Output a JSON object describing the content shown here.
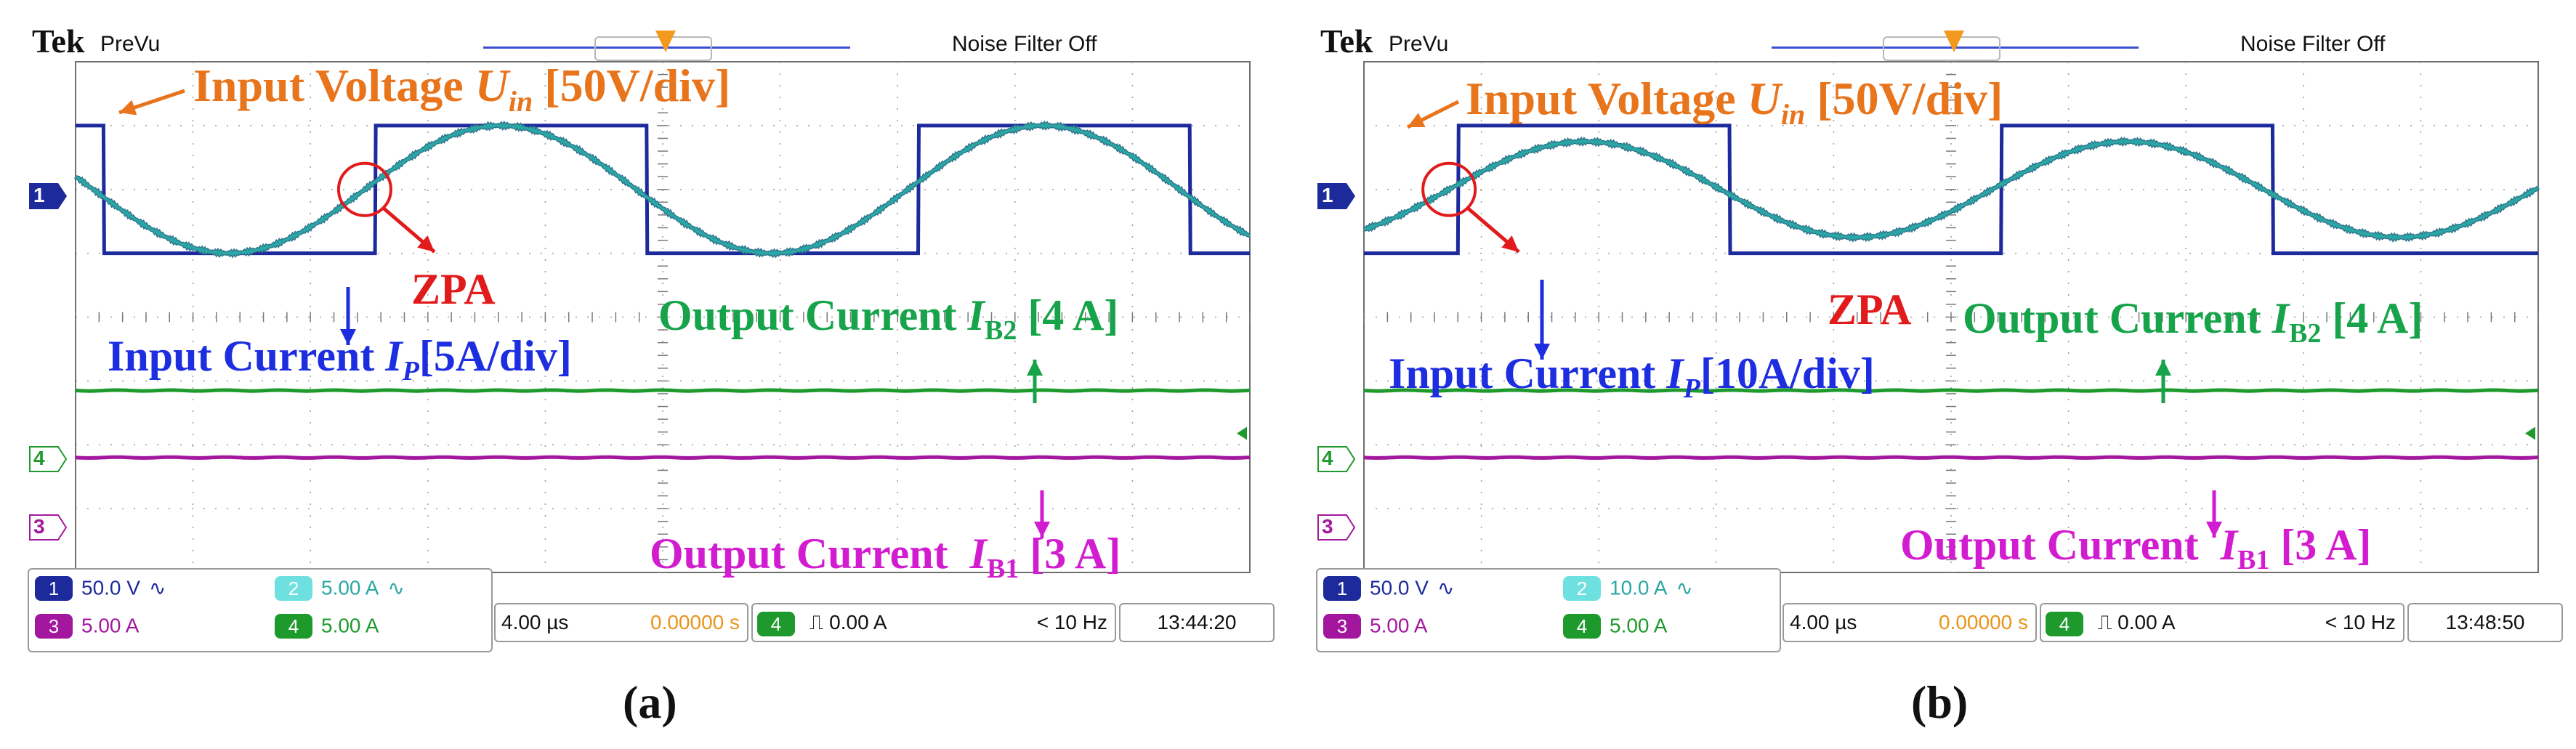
{
  "panels": [
    {
      "id": "a",
      "header": {
        "brand": "Tek",
        "mode": "PreVu",
        "noise_filter": "Noise Filter Off"
      },
      "annotations": {
        "input_voltage": {
          "prefix": "Input Voltage ",
          "var": "U",
          "sub": "in",
          "suffix": " [50V/div]"
        },
        "zpa": "ZPA",
        "input_current": {
          "prefix": "Input Current ",
          "var": "I",
          "sub": "P",
          "suffix": "[5A/div]"
        },
        "output_b2": {
          "prefix": "Output Current ",
          "var": "I",
          "sub": "B2",
          "suffix": " [4 A]"
        },
        "output_b1": {
          "prefix": "Output Current  ",
          "var": "I",
          "sub": "B1",
          "suffix": " [3 A]"
        }
      },
      "channels": {
        "ch1": {
          "label": "1",
          "scale": "50.0 V",
          "symbol": "∿"
        },
        "ch2": {
          "label": "2",
          "scale": "5.00 A",
          "symbol": "∿"
        },
        "ch3": {
          "label": "3",
          "scale": "5.00 A"
        },
        "ch4": {
          "label": "4",
          "scale": "5.00 A"
        }
      },
      "timebase": {
        "time_div": "4.00 µs",
        "position": "0.00000 s"
      },
      "trigger": {
        "source": "4",
        "slope": "⎍",
        "level": "0.00 A",
        "freq": "< 10 Hz"
      },
      "clock": "13:44:20",
      "caption": "(a)"
    },
    {
      "id": "b",
      "header": {
        "brand": "Tek",
        "mode": "PreVu",
        "noise_filter": "Noise Filter Off"
      },
      "annotations": {
        "input_voltage": {
          "prefix": "Input Voltage ",
          "var": "U",
          "sub": "in",
          "suffix": " [50V/div]"
        },
        "zpa": "ZPA",
        "input_current": {
          "prefix": "Input Current ",
          "var": "I",
          "sub": "P",
          "suffix": "[10A/div]"
        },
        "output_b2": {
          "prefix": "Output Current ",
          "var": "I",
          "sub": "B2",
          "suffix": " [4 A]"
        },
        "output_b1": {
          "prefix": "Output Current  ",
          "var": "I",
          "sub": "B1",
          "suffix": " [3 A]"
        }
      },
      "channels": {
        "ch1": {
          "label": "1",
          "scale": "50.0 V",
          "symbol": "∿"
        },
        "ch2": {
          "label": "2",
          "scale": "10.0 A",
          "symbol": "∿"
        },
        "ch3": {
          "label": "3",
          "scale": "5.00 A"
        },
        "ch4": {
          "label": "4",
          "scale": "5.00 A"
        }
      },
      "timebase": {
        "time_div": "4.00 µs",
        "position": "0.00000 s"
      },
      "trigger": {
        "source": "4",
        "slope": "⎍",
        "level": "0.00 A",
        "freq": "< 10 Hz"
      },
      "clock": "13:48:50",
      "caption": "(b)"
    }
  ],
  "colors": {
    "ch1_voltage": "#1c2a9c",
    "ch2_current": "#2aa7a4",
    "ch3_output_b1": "#a3169e",
    "ch4_output_b2": "#1e9a2c",
    "annot_voltage": "#e8741c",
    "annot_zpa": "#e11b1b",
    "annot_input_current": "#1d2ee0",
    "annot_output_b2": "#16a34a",
    "annot_output_b1": "#d21ccf"
  },
  "chart_data": [
    {
      "type": "line",
      "panel": "a",
      "x_units": "µs",
      "x_range": [
        0,
        40
      ],
      "y_units": "div",
      "y_range": [
        -4,
        4
      ],
      "grid": true,
      "series": [
        {
          "channel": "ch1",
          "shape": "square",
          "amplitude_div": 1.0,
          "offset_div": 2.0,
          "period_us": 18.5,
          "first_rise_us": 10.2,
          "first_fall_us": 0.95
        },
        {
          "channel": "ch2",
          "shape": "sine",
          "amplitude_div": 1.0,
          "offset_div": 2.0,
          "period_us": 18.5,
          "zero_cross_rising_us": 9.85
        },
        {
          "channel": "ch4",
          "shape": "dc",
          "level_div": -1.15
        },
        {
          "channel": "ch3",
          "shape": "dc",
          "level_div": -2.2
        }
      ]
    },
    {
      "type": "line",
      "panel": "b",
      "x_units": "µs",
      "x_range": [
        0,
        40
      ],
      "y_units": "div",
      "y_range": [
        -4,
        4
      ],
      "grid": true,
      "series": [
        {
          "channel": "ch1",
          "shape": "square",
          "amplitude_div": 1.0,
          "offset_div": 2.0,
          "period_us": 18.5,
          "first_rise_us": 3.2,
          "first_fall_us": 12.45
        },
        {
          "channel": "ch2",
          "shape": "sine",
          "amplitude_div": 0.75,
          "offset_div": 2.0,
          "period_us": 18.5,
          "zero_cross_rising_us": 2.9
        },
        {
          "channel": "ch4",
          "shape": "dc",
          "level_div": -1.15
        },
        {
          "channel": "ch3",
          "shape": "dc",
          "level_div": -2.2
        }
      ]
    }
  ]
}
